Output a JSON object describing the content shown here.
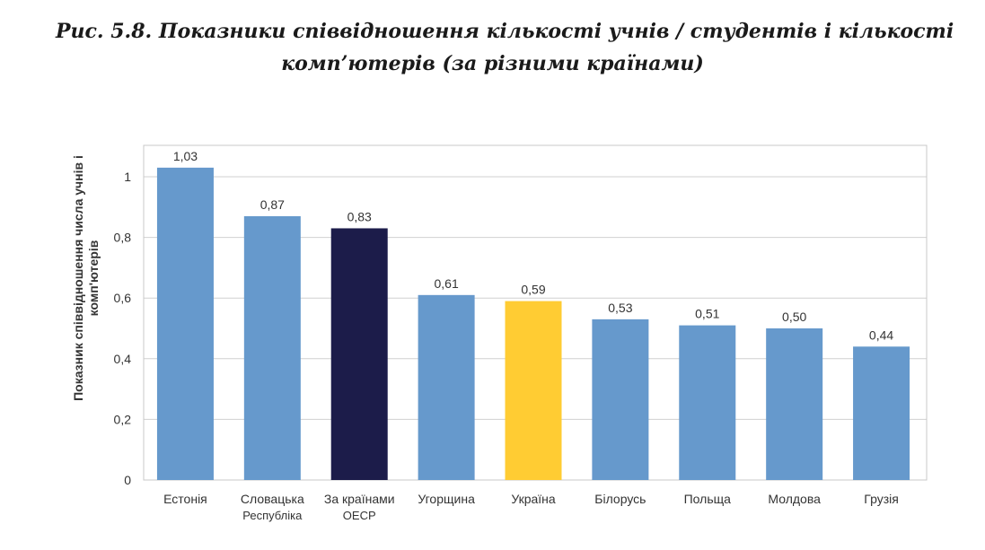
{
  "figure": {
    "caption_line1": "Рис. 5.8. Показники співвідношення кількості учнів / студентів і кількості",
    "caption_line2": "комп’ютерів (за різними країнами)"
  },
  "chart_data": {
    "type": "bar",
    "title": "",
    "xlabel": "",
    "ylabel_line1": "Показник співвідношення числа учнів і",
    "ylabel_line2": "комп'ютерів",
    "ylim": [
      0,
      1.1
    ],
    "yticks": [
      0,
      0.2,
      0.4,
      0.6,
      0.8,
      1
    ],
    "ytick_labels": [
      "0",
      "0,2",
      "0,4",
      "0,6",
      "0,8",
      "1"
    ],
    "grid": true,
    "categories": [
      [
        "Естонія"
      ],
      [
        "Словацька",
        "Республіка"
      ],
      [
        "За країнами",
        "ОЕСР"
      ],
      [
        "Угорщина"
      ],
      [
        "Україна"
      ],
      [
        "Білорусь"
      ],
      [
        "Польща"
      ],
      [
        "Молдова"
      ],
      [
        "Грузія"
      ]
    ],
    "values": [
      1.03,
      0.87,
      0.83,
      0.61,
      0.59,
      0.53,
      0.51,
      0.5,
      0.44
    ],
    "value_labels": [
      "1,03",
      "0,87",
      "0,83",
      "0,61",
      "0,59",
      "0,53",
      "0,51",
      "0,50",
      "0,44"
    ],
    "bar_colors": [
      "#6699cc",
      "#6699cc",
      "#1c1c4a",
      "#6699cc",
      "#ffcc33",
      "#6699cc",
      "#6699cc",
      "#6699cc",
      "#6699cc"
    ]
  }
}
